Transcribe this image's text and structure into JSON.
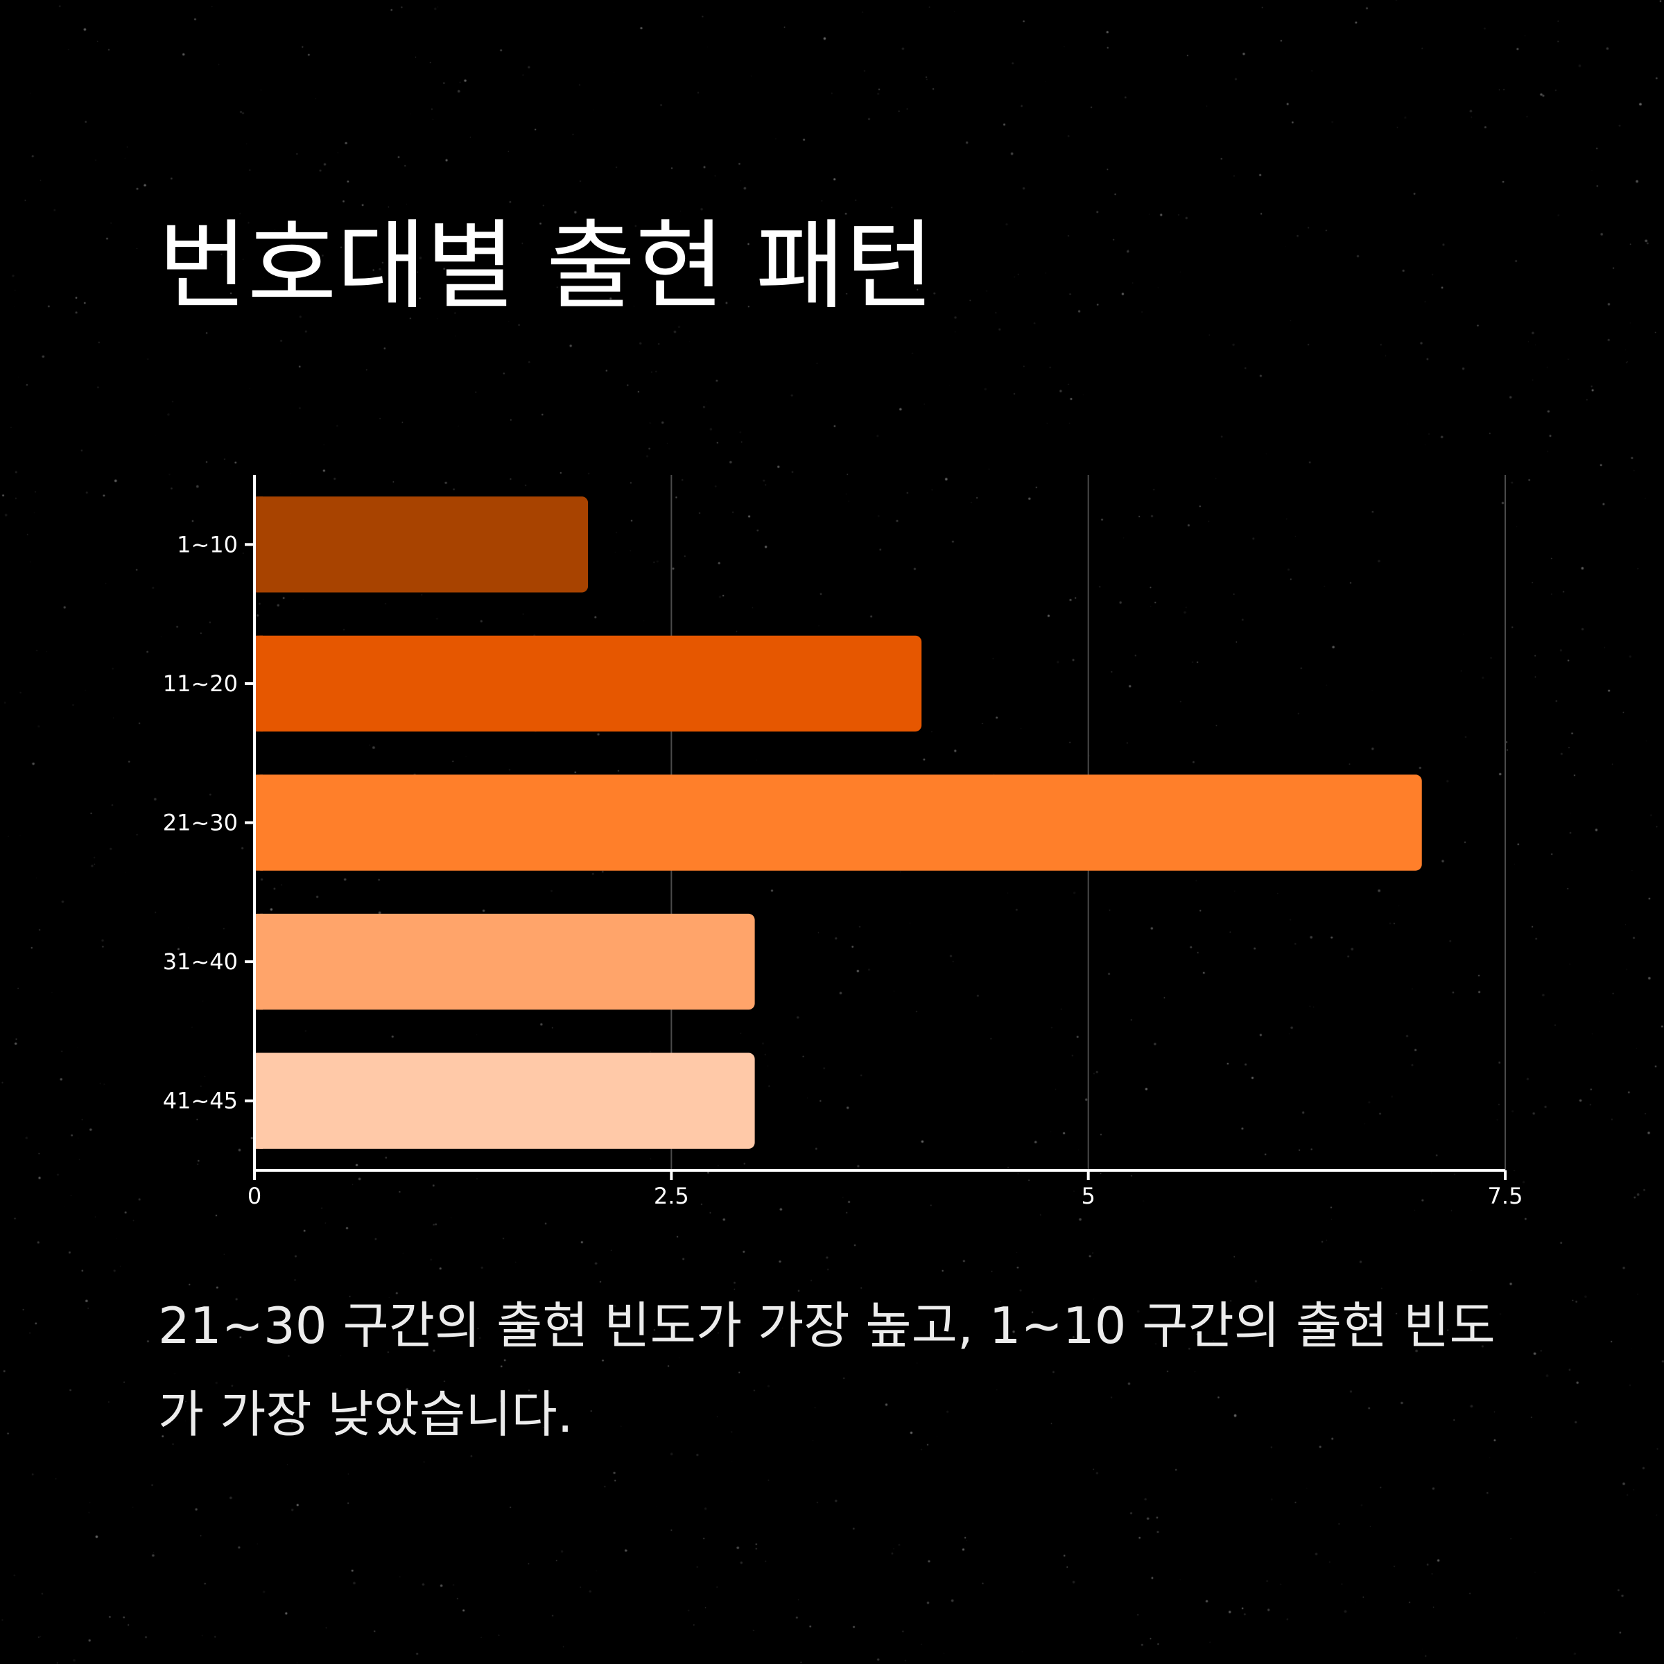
{
  "title": "번호대별 출현 패턴",
  "caption": "21~30 구간의 출현 빈도가 가장 높고, 1~10 구간의 출현 빈도가 가장 낮았습니다.",
  "colors": {
    "background": "#000000",
    "text": "#ffffff",
    "axis": "#ffffff",
    "grid": "#4a4a4a"
  },
  "chart_data": {
    "type": "bar",
    "orientation": "horizontal",
    "categories": [
      "1~10",
      "11~20",
      "21~30",
      "31~40",
      "41~45"
    ],
    "values": [
      2,
      4,
      7,
      3,
      3
    ],
    "bar_colors": [
      "#a84300",
      "#e65700",
      "#ff7f2a",
      "#ffa46a",
      "#ffc9a8"
    ],
    "xlim": [
      0,
      7.5
    ],
    "xticks": [
      0,
      2.5,
      5,
      7.5
    ],
    "xtick_labels": [
      "0",
      "2.5",
      "5",
      "7.5"
    ],
    "title": "",
    "xlabel": "",
    "ylabel": "",
    "grid": "vertical",
    "legend": "none"
  }
}
